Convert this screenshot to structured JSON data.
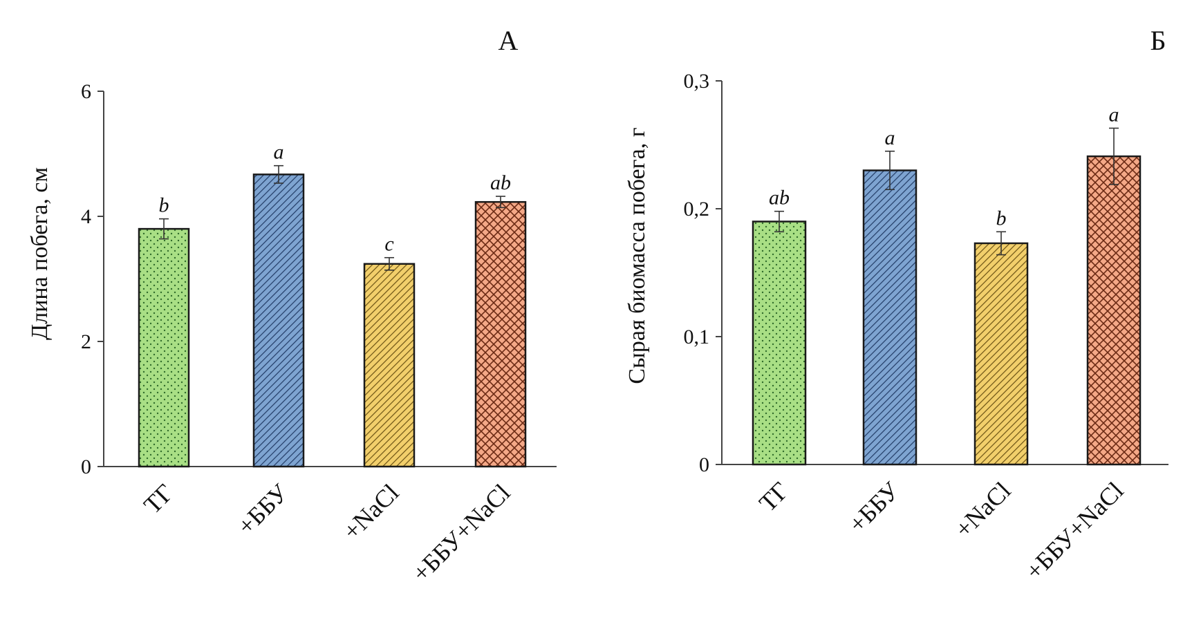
{
  "chart_data": [
    {
      "type": "bar",
      "panel_label": "А",
      "ylabel": "Длина побега, см",
      "ylim": [
        0,
        6
      ],
      "yticks": [
        "0",
        "2",
        "4",
        "6"
      ],
      "categories": [
        "ТГ",
        "+ББУ",
        "+NaCl",
        "+ББУ+NaCl"
      ],
      "values": [
        3.8,
        4.67,
        3.24,
        4.23
      ],
      "errors": [
        0.16,
        0.14,
        0.1,
        0.09
      ],
      "significance": [
        "b",
        "a",
        "c",
        "ab"
      ],
      "colors": [
        "#a9df85",
        "#7ea4d1",
        "#f2cf6b",
        "#f4a887"
      ],
      "patterns": [
        "dots",
        "diagonal",
        "diagonal",
        "crosshatch"
      ],
      "grid": false,
      "legend": "none"
    },
    {
      "type": "bar",
      "panel_label": "Б",
      "ylabel": "Сырая биомасса побега, г",
      "ylim": [
        0,
        0.3
      ],
      "yticks": [
        "0",
        "0,1",
        "0,2",
        "0,3"
      ],
      "categories": [
        "ТГ",
        "+ББУ",
        "+NaCl",
        "+ББУ+NaCl"
      ],
      "values": [
        0.19,
        0.23,
        0.173,
        0.241
      ],
      "errors": [
        0.008,
        0.015,
        0.009,
        0.022
      ],
      "significance": [
        "ab",
        "a",
        "b",
        "a"
      ],
      "colors": [
        "#a9df85",
        "#7ea4d1",
        "#f2cf6b",
        "#f4a887"
      ],
      "patterns": [
        "dots",
        "diagonal",
        "diagonal",
        "crosshatch"
      ],
      "grid": false,
      "legend": "none"
    }
  ]
}
